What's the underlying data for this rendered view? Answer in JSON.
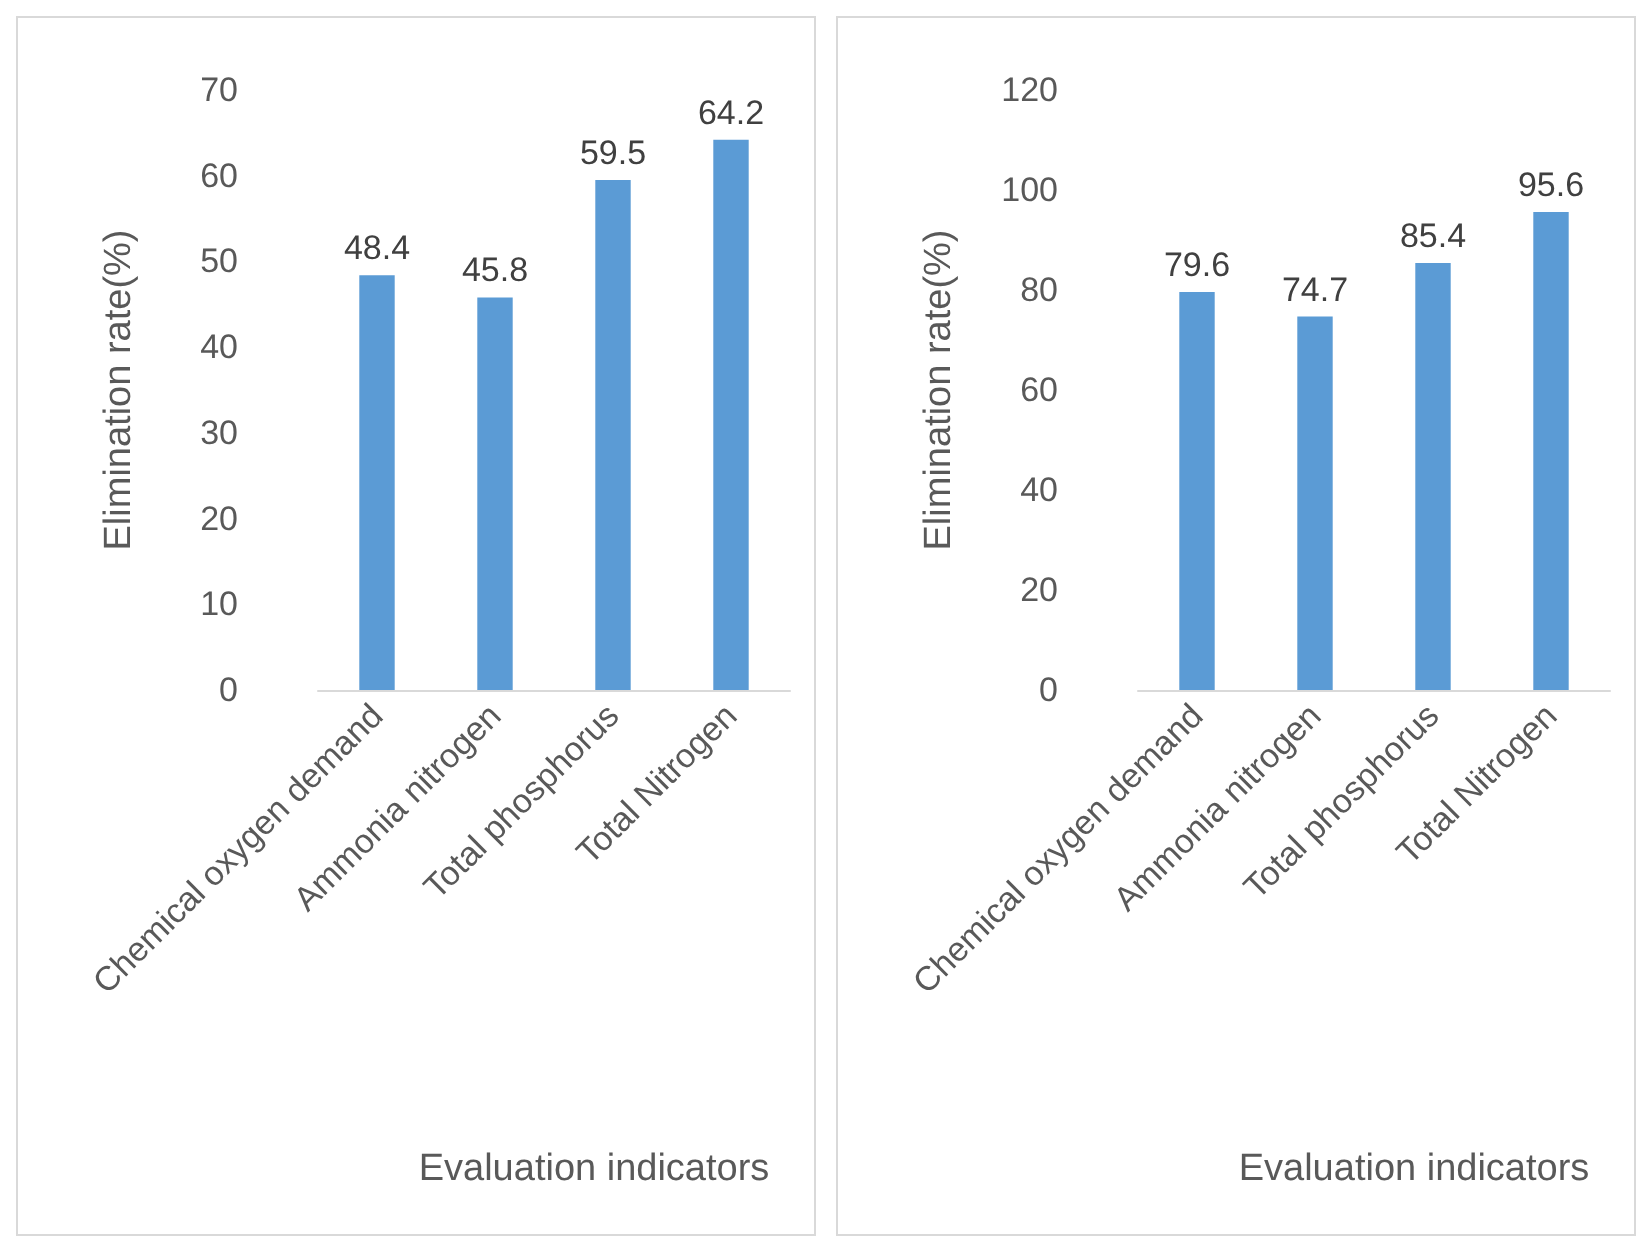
{
  "chart_data": [
    {
      "type": "bar",
      "xlabel": "Evaluation indicators",
      "ylabel": "Elimination rate(%)",
      "categories": [
        "Chemical oxygen demand",
        "Ammonia nitrogen",
        "Total phosphorus",
        "Total Nitrogen"
      ],
      "values": [
        48.4,
        45.8,
        59.5,
        64.2
      ],
      "color": "#5b9bd5",
      "ylim": [
        0,
        70
      ],
      "yticks": [
        0,
        10,
        20,
        30,
        40,
        50,
        60,
        70
      ],
      "data_labels": true,
      "grid": false
    },
    {
      "type": "bar",
      "xlabel": "Evaluation indicators",
      "ylabel": "Elimination rate(%)",
      "categories": [
        "Chemical oxygen demand",
        "Ammonia nitrogen",
        "Total phosphorus",
        "Total Nitrogen"
      ],
      "values": [
        79.6,
        74.7,
        85.4,
        95.6
      ],
      "color": "#5b9bd5",
      "ylim": [
        0,
        120
      ],
      "yticks": [
        0,
        20,
        40,
        60,
        80,
        100,
        120
      ],
      "data_labels": true,
      "grid": false
    }
  ]
}
